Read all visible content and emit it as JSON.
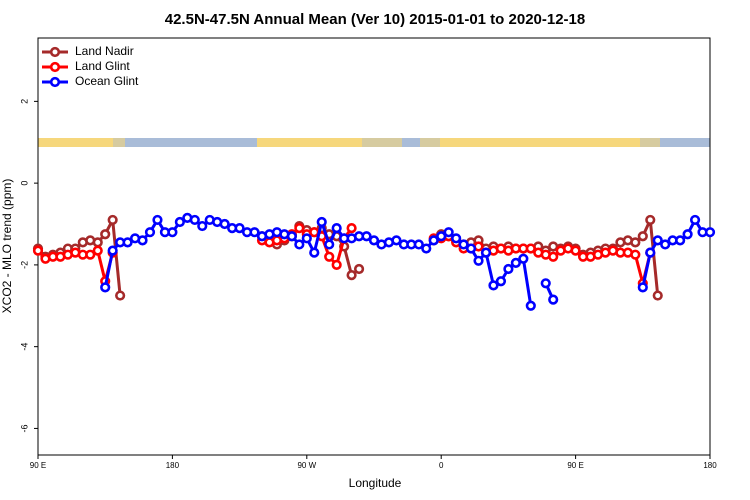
{
  "chart_data": {
    "type": "line",
    "title": "42.5N-47.5N Annual Mean (Ver 10)   2015-01-01 to 2020-12-18",
    "x_label": "Longitude",
    "y_label": "XCO2 - MLO trend (ppm)",
    "x": [
      90,
      95,
      100,
      105,
      110,
      115,
      120,
      125,
      130,
      135,
      140,
      145,
      150,
      155,
      160,
      165,
      170,
      175,
      180,
      185,
      190,
      195,
      200,
      205,
      210,
      215,
      220,
      225,
      230,
      235,
      240,
      245,
      250,
      255,
      260,
      265,
      270,
      275,
      280,
      285,
      290,
      295,
      300,
      305,
      310,
      315,
      320,
      325,
      330,
      335,
      340,
      345,
      350,
      355,
      360,
      365,
      370,
      375,
      380,
      385,
      390,
      395,
      400,
      405,
      410,
      415,
      420,
      425,
      430,
      435,
      440,
      445,
      450,
      455,
      460,
      465,
      470,
      475,
      480,
      485,
      490,
      495,
      500,
      505,
      510,
      515,
      520,
      525,
      530,
      535,
      540
    ],
    "series": [
      {
        "name": "Land Nadir",
        "color": "#a52a2a",
        "values": [
          -1.6,
          -1.8,
          -1.75,
          -1.7,
          -1.6,
          -1.6,
          -1.45,
          -1.4,
          -1.45,
          -1.25,
          -0.9,
          -2.75,
          null,
          null,
          null,
          null,
          null,
          null,
          null,
          null,
          null,
          null,
          null,
          null,
          null,
          null,
          null,
          null,
          null,
          null,
          -1.3,
          -1.4,
          -1.5,
          -1.4,
          -1.3,
          -1.05,
          -1.15,
          -1.2,
          -1.1,
          -1.25,
          -1.3,
          -1.55,
          -2.25,
          -2.1,
          null,
          null,
          null,
          null,
          null,
          null,
          null,
          null,
          null,
          -1.4,
          -1.25,
          -1.3,
          -1.4,
          -1.5,
          -1.45,
          -1.4,
          -1.6,
          -1.55,
          -1.6,
          -1.55,
          -1.6,
          -1.6,
          -1.6,
          -1.55,
          -1.65,
          -1.55,
          -1.6,
          -1.55,
          -1.6,
          -1.75,
          -1.7,
          -1.65,
          -1.6,
          -1.6,
          -1.45,
          -1.4,
          -1.45,
          -1.3,
          -0.9,
          -2.75,
          null,
          null,
          null,
          null,
          null,
          null,
          null
        ]
      },
      {
        "name": "Land Glint",
        "color": "#ff0000",
        "values": [
          -1.65,
          -1.85,
          -1.8,
          -1.8,
          -1.75,
          -1.7,
          -1.75,
          -1.75,
          -1.65,
          -2.4,
          -1.7,
          null,
          null,
          null,
          null,
          null,
          null,
          null,
          null,
          null,
          null,
          null,
          null,
          null,
          null,
          null,
          null,
          null,
          null,
          null,
          -1.4,
          -1.45,
          -1.4,
          -1.35,
          -1.25,
          -1.1,
          -1.25,
          -1.2,
          -1.3,
          -1.8,
          -2.0,
          -1.35,
          -1.1,
          null,
          null,
          null,
          null,
          null,
          null,
          null,
          null,
          null,
          null,
          -1.35,
          -1.35,
          -1.3,
          -1.45,
          -1.6,
          -1.6,
          -1.55,
          -1.7,
          -1.65,
          -1.6,
          -1.65,
          -1.6,
          -1.6,
          -1.6,
          -1.7,
          -1.75,
          -1.8,
          -1.65,
          -1.6,
          -1.65,
          -1.8,
          -1.8,
          -1.75,
          -1.7,
          -1.65,
          -1.7,
          -1.7,
          -1.75,
          -2.45,
          -1.7,
          null,
          null,
          null,
          null,
          null,
          null,
          null,
          null
        ]
      },
      {
        "name": "Ocean Glint",
        "color": "#0000ff",
        "values": [
          null,
          null,
          null,
          null,
          null,
          null,
          null,
          null,
          null,
          -2.55,
          -1.65,
          -1.45,
          -1.45,
          -1.35,
          -1.4,
          -1.2,
          -0.9,
          -1.2,
          -1.2,
          -0.95,
          -0.85,
          -0.9,
          -1.05,
          -0.9,
          -0.95,
          -1.0,
          -1.1,
          -1.1,
          -1.2,
          -1.2,
          -1.3,
          -1.25,
          -1.2,
          -1.25,
          -1.3,
          -1.5,
          -1.35,
          -1.7,
          -0.95,
          -1.5,
          -1.1,
          -1.35,
          -1.35,
          -1.3,
          -1.3,
          -1.4,
          -1.5,
          -1.45,
          -1.4,
          -1.5,
          -1.5,
          -1.5,
          -1.6,
          -1.4,
          -1.3,
          -1.2,
          -1.35,
          -1.5,
          -1.6,
          -1.9,
          -1.7,
          -2.5,
          -2.4,
          -2.1,
          -1.95,
          -1.85,
          -3.0,
          null,
          -2.45,
          -2.85,
          null,
          null,
          null,
          null,
          null,
          null,
          null,
          null,
          null,
          null,
          null,
          -2.55,
          -1.7,
          -1.4,
          -1.5,
          -1.4,
          -1.4,
          -1.25,
          -0.9,
          -1.2,
          -1.2
        ]
      }
    ],
    "xlim": [
      90,
      540
    ],
    "xticks": [
      {
        "value": 90,
        "label": "90 E"
      },
      {
        "value": 180,
        "label": "180"
      },
      {
        "value": 270,
        "label": "90 W"
      },
      {
        "value": 360,
        "label": "0"
      },
      {
        "value": 450,
        "label": "90 E"
      },
      {
        "value": 540,
        "label": "180"
      }
    ],
    "ylim": [
      -6.65,
      3.55
    ],
    "yticks": [
      2,
      0,
      -2,
      -4,
      -6
    ],
    "grid": false,
    "legend": "top-left"
  }
}
